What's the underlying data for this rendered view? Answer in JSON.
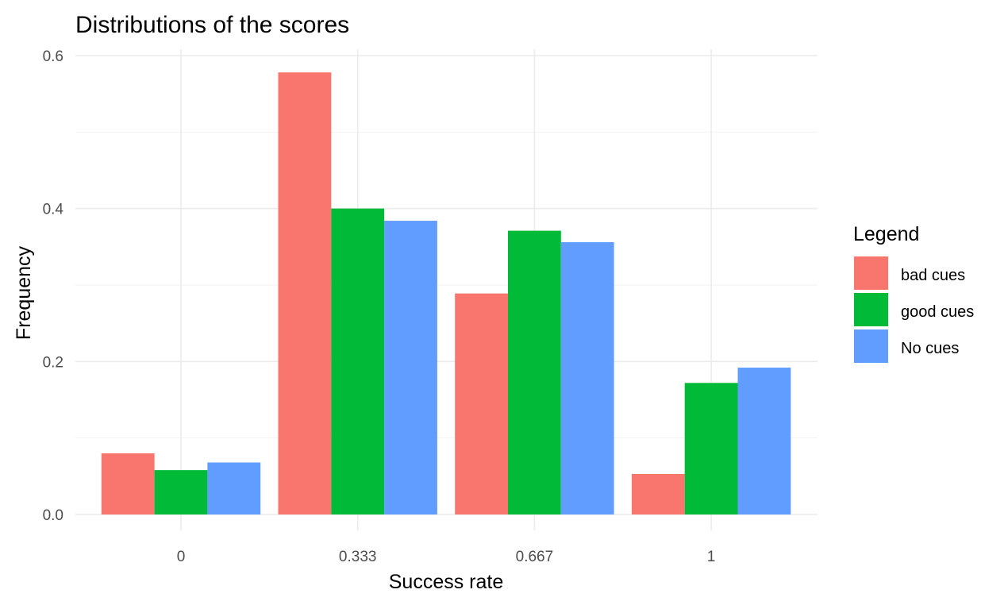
{
  "chart_data": {
    "type": "bar",
    "title": "Distributions of the scores",
    "xlabel": "Success rate",
    "ylabel": "Frequency",
    "categories": [
      "0",
      "0.333",
      "0.667",
      "1"
    ],
    "ylim": [
      0,
      0.6
    ],
    "yticks": [
      "0.0",
      "0.2",
      "0.4",
      "0.6"
    ],
    "grid": true,
    "legend": {
      "title": "Legend",
      "position": "right"
    },
    "series": [
      {
        "name": "bad cues",
        "color": "#F8766D",
        "values": [
          0.08,
          0.578,
          0.289,
          0.053
        ]
      },
      {
        "name": "good cues",
        "color": "#00BA38",
        "values": [
          0.058,
          0.4,
          0.371,
          0.172
        ]
      },
      {
        "name": "No cues",
        "color": "#619CFF",
        "values": [
          0.068,
          0.384,
          0.356,
          0.192
        ]
      }
    ]
  }
}
